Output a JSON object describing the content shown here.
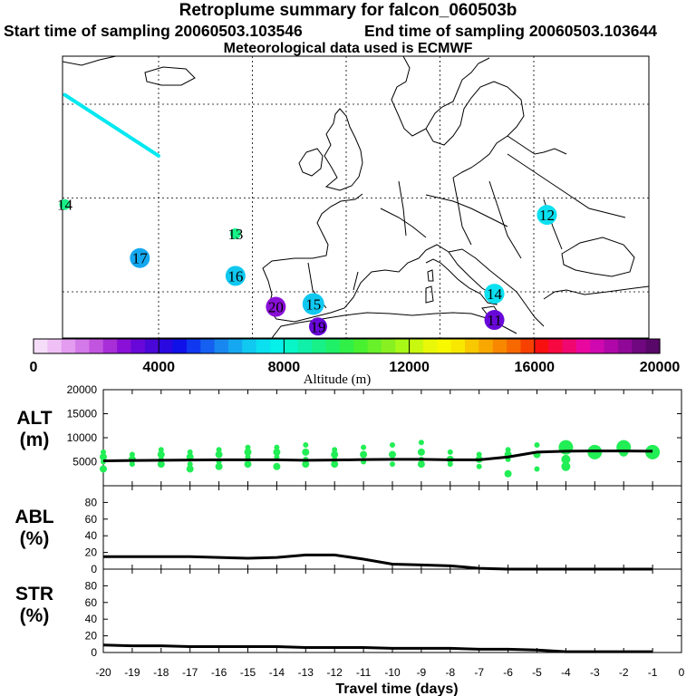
{
  "titles": {
    "main": "Retroplume summary for falcon_060503b",
    "start": "Start time of sampling 20060503.103546",
    "end": "End time of sampling 20060503.103644",
    "met": "Meteorological data used is ECMWF"
  },
  "chart_data": [
    {
      "type": "scatter",
      "title": "Retroplume cluster centres (map)",
      "colorbar": {
        "label": "Altitude (m)",
        "range": [
          0,
          20000
        ],
        "ticks": [
          0,
          4000,
          8000,
          12000,
          16000,
          20000
        ],
        "colors": [
          "#f5dcf8",
          "#efc0f5",
          "#e39cf0",
          "#d47ae8",
          "#c255e0",
          "#a82ed8",
          "#8a10d8",
          "#6808d8",
          "#4a08d8",
          "#2a08e0",
          "#1010e8",
          "#1038f0",
          "#1560f0",
          "#1888f0",
          "#15a8f0",
          "#10c8f0",
          "#0ae0f0",
          "#05f0e8",
          "#08f5c8",
          "#10f0a8",
          "#18f088",
          "#20f068",
          "#30f048",
          "#48f030",
          "#68f028",
          "#88f020",
          "#a8f818",
          "#c8f810",
          "#e8f808",
          "#f8f800",
          "#f8e800",
          "#f8c800",
          "#f8a800",
          "#f88800",
          "#f86800",
          "#f84000",
          "#f81010",
          "#f80840",
          "#f00870",
          "#e808a0",
          "#d008b0",
          "#b008a8",
          "#900898",
          "#700880",
          "#580868"
        ]
      },
      "track": {
        "from": [
          -30,
          61
        ],
        "to": [
          -20,
          54.5
        ],
        "color": "#00e8f0"
      },
      "points": [
        {
          "label": "14",
          "lon": -30.0,
          "lat": 49.3,
          "alt": 9000,
          "size": 6
        },
        {
          "label": "13",
          "lon": -11.8,
          "lat": 46.2,
          "alt": 9000,
          "size": 6
        },
        {
          "label": "17",
          "lon": -22.0,
          "lat": 43.6,
          "alt": 6500,
          "size": 11
        },
        {
          "label": "16",
          "lon": -11.8,
          "lat": 41.7,
          "alt": 6800,
          "size": 11
        },
        {
          "label": "20",
          "lon": -7.5,
          "lat": 38.4,
          "alt": 3000,
          "size": 11
        },
        {
          "label": "15",
          "lon": -3.5,
          "lat": 38.7,
          "alt": 7000,
          "size": 12
        },
        {
          "label": "19",
          "lon": -3.0,
          "lat": 36.3,
          "alt": 3200,
          "size": 10
        },
        {
          "label": "14",
          "lon": 15.8,
          "lat": 39.8,
          "alt": 7200,
          "size": 11
        },
        {
          "label": "11",
          "lon": 15.8,
          "lat": 37.0,
          "alt": 3400,
          "size": 11
        },
        {
          "label": "12",
          "lon": 21.4,
          "lat": 48.2,
          "alt": 7300,
          "size": 11
        }
      ],
      "grid_lon": [
        -20,
        -10,
        0,
        10,
        20
      ],
      "grid_lat": [
        40,
        50,
        60
      ]
    },
    {
      "type": "line",
      "ylabel": "ALT (m)",
      "ylim": [
        0,
        20000
      ],
      "yticks": [
        5000,
        10000,
        15000,
        20000
      ],
      "x": [
        -20,
        -19,
        -18,
        -17,
        -16,
        -15,
        -14,
        -13,
        -12,
        -11,
        -10,
        -9,
        -8,
        -7,
        -6,
        -5,
        -4,
        -3,
        -2,
        -1
      ],
      "values": [
        5200,
        5250,
        5300,
        5350,
        5400,
        5400,
        5400,
        5300,
        5350,
        5450,
        5500,
        5500,
        5400,
        5400,
        6000,
        7000,
        7200,
        7250,
        7250,
        7200
      ],
      "spread": [
        {
          "x": -20,
          "alts": [
            7000,
            6000,
            5000,
            3500
          ]
        },
        {
          "x": -19,
          "alts": [
            6500,
            5500,
            4500
          ]
        },
        {
          "x": -18,
          "alts": [
            7500,
            6500,
            5500,
            4500
          ]
        },
        {
          "x": -17,
          "alts": [
            7000,
            6000,
            4500,
            3500
          ]
        },
        {
          "x": -16,
          "alts": [
            7500,
            6500,
            5000,
            4000
          ]
        },
        {
          "x": -15,
          "alts": [
            8000,
            7000,
            6000,
            4500
          ]
        },
        {
          "x": -14,
          "alts": [
            8000,
            7000,
            6000,
            4000
          ]
        },
        {
          "x": -13,
          "alts": [
            8500,
            7000,
            5500,
            4500
          ]
        },
        {
          "x": -12,
          "alts": [
            7500,
            6500,
            5500,
            4500
          ]
        },
        {
          "x": -11,
          "alts": [
            8000,
            6500,
            5000
          ]
        },
        {
          "x": -10,
          "alts": [
            8500,
            6500,
            4500
          ]
        },
        {
          "x": -9,
          "alts": [
            9000,
            7000,
            5500,
            4500
          ]
        },
        {
          "x": -8,
          "alts": [
            7000,
            5500,
            4500
          ]
        },
        {
          "x": -7,
          "alts": [
            6500,
            5500,
            4000
          ]
        },
        {
          "x": -6,
          "alts": [
            7500,
            6500,
            5500,
            2500
          ]
        },
        {
          "x": -5,
          "alts": [
            8500,
            6500,
            3500
          ]
        },
        {
          "x": -4,
          "alts": [
            8000,
            5500,
            4000
          ]
        },
        {
          "x": -3,
          "alts": [
            7000
          ]
        },
        {
          "x": -2,
          "alts": [
            8000,
            7000
          ]
        },
        {
          "x": -1,
          "alts": [
            7000
          ]
        }
      ]
    },
    {
      "type": "line",
      "ylabel": "ABL (%)",
      "ylim": [
        0,
        100
      ],
      "yticks": [
        0,
        20,
        40,
        60,
        80
      ],
      "x": [
        -20,
        -19,
        -18,
        -17,
        -16,
        -15,
        -14,
        -13,
        -12,
        -11,
        -10,
        -9,
        -8,
        -7,
        -6,
        -5,
        -4,
        -3,
        -2,
        -1
      ],
      "values": [
        15,
        15,
        15,
        15,
        14,
        13,
        14,
        17,
        17,
        12,
        6,
        5,
        4,
        1,
        0,
        0,
        0,
        0,
        0,
        0
      ]
    },
    {
      "type": "line",
      "ylabel": "STR (%)",
      "ylim": [
        0,
        100
      ],
      "yticks": [
        0,
        20,
        40,
        60,
        80
      ],
      "xlabel": "Travel time (days)",
      "xticks": [
        -20,
        -19,
        -18,
        -17,
        -16,
        -15,
        -14,
        -13,
        -12,
        -11,
        -10,
        -9,
        -8,
        -7,
        -6,
        -5,
        -4,
        -3,
        -2,
        -1,
        0
      ],
      "x": [
        -20,
        -19,
        -18,
        -17,
        -16,
        -15,
        -14,
        -13,
        -12,
        -11,
        -10,
        -9,
        -8,
        -7,
        -6,
        -5,
        -4,
        -3,
        -2,
        -1
      ],
      "values": [
        9,
        8,
        8,
        7,
        7,
        7,
        7,
        6,
        6,
        6,
        5,
        5,
        5,
        4,
        4,
        3,
        1,
        1,
        1,
        1
      ]
    }
  ]
}
